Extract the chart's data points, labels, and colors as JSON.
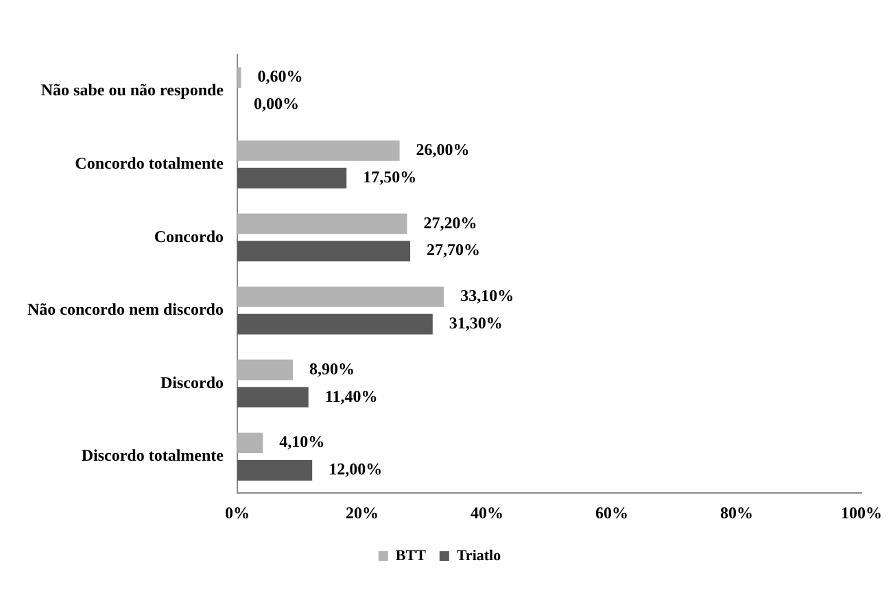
{
  "chart_data": {
    "type": "bar",
    "orientation": "horizontal",
    "categories": [
      "Não sabe ou não responde",
      "Concordo totalmente",
      "Concordo",
      "Não concordo nem discordo",
      "Discordo",
      "Discordo totalmente"
    ],
    "series": [
      {
        "name": "BTT",
        "color": "#b3b3b3",
        "values": [
          0.6,
          26,
          27.2,
          33.1,
          8.9,
          4.1
        ],
        "value_labels": [
          "0,60%",
          "26,00%",
          "27,20%",
          "33,10%",
          "8,90%",
          "4,10%"
        ]
      },
      {
        "name": "Triatlo",
        "color": "#595959",
        "values": [
          0,
          17.5,
          27.7,
          31.3,
          11.4,
          12
        ],
        "value_labels": [
          "0,00%",
          "17,50%",
          "27,70%",
          "31,30%",
          "11,40%",
          "12,00%"
        ]
      }
    ],
    "xlim": [
      0,
      100
    ],
    "xticks": [
      {
        "value": 0,
        "label": "0%"
      },
      {
        "value": 20,
        "label": "20%"
      },
      {
        "value": 40,
        "label": "40%"
      },
      {
        "value": 60,
        "label": "60%"
      },
      {
        "value": 80,
        "label": "80%"
      },
      {
        "value": 100,
        "label": "100%"
      }
    ],
    "grid": false,
    "legend": "bottom"
  }
}
